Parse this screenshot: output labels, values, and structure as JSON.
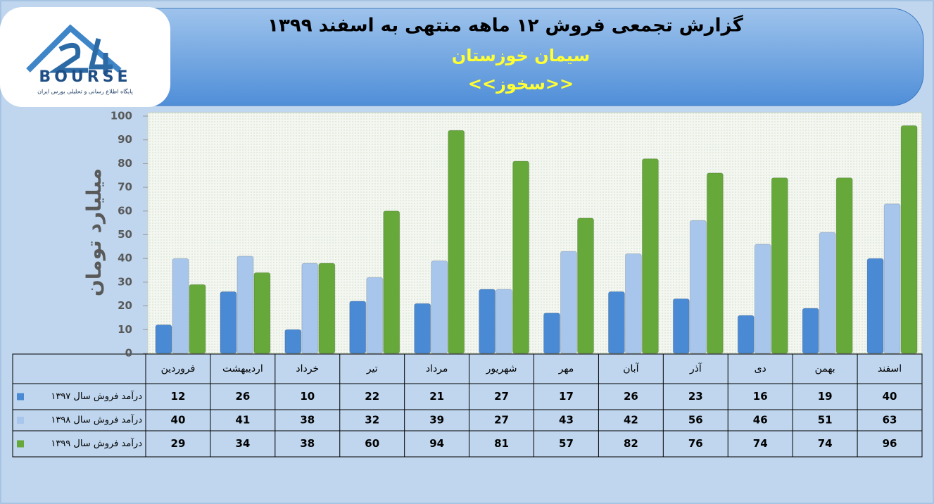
{
  "logo": {
    "brand": "BOURSE",
    "tagline": "پایگاه اطلاع رسانی و تحلیلی بورس ایران"
  },
  "chart_data": {
    "type": "bar",
    "title": "گزارش تجمعی فروش ۱۲ ماهه منتهی به اسفند ۱۳۹۹",
    "subtitle": "سیمان خوزستان",
    "ticker": "<<سخوز>>",
    "y_label": "میلیارد تومان",
    "categories": [
      "فروردین",
      "اردیبهشت",
      "خرداد",
      "تیر",
      "مرداد",
      "شهریور",
      "مهر",
      "آبان",
      "آذر",
      "دی",
      "بهمن",
      "اسفند"
    ],
    "series": [
      {
        "name": "درآمد فروش سال ۱۳۹۷",
        "color": "#4a8ad4",
        "values": [
          12,
          26,
          10,
          22,
          21,
          27,
          17,
          26,
          23,
          16,
          19,
          40
        ]
      },
      {
        "name": "درآمد فروش سال ۱۳۹۸",
        "color": "#a8c6ec",
        "values": [
          40,
          41,
          38,
          32,
          39,
          27,
          43,
          42,
          56,
          46,
          51,
          63
        ]
      },
      {
        "name": "درآمد فروش سال ۱۳۹۹",
        "color": "#66a83a",
        "values": [
          29,
          34,
          38,
          60,
          94,
          81,
          57,
          82,
          76,
          74,
          74,
          96
        ]
      }
    ],
    "ylim": [
      0,
      100
    ],
    "yticks": [
      0,
      10,
      20,
      30,
      40,
      50,
      60,
      70,
      80,
      90,
      100
    ],
    "grid": false
  }
}
